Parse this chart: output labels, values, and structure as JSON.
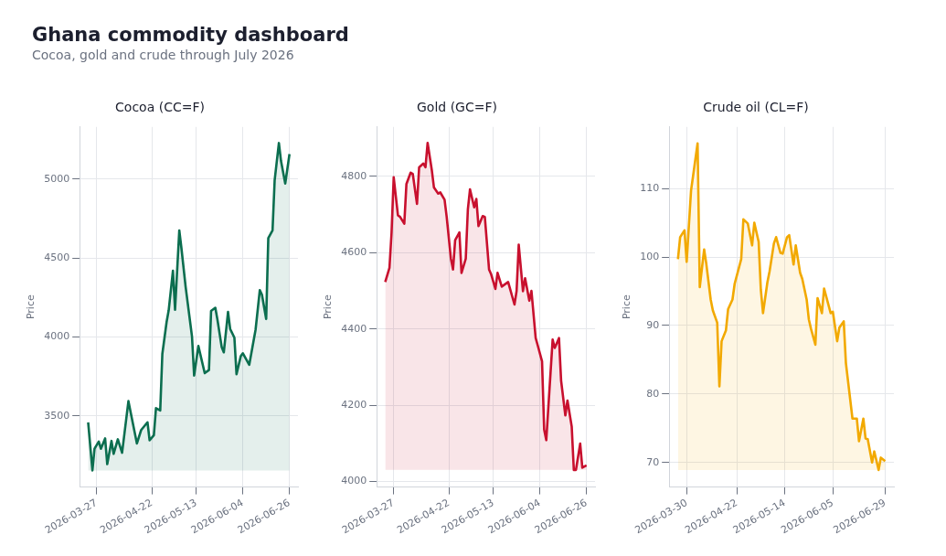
{
  "chart_data": [
    {
      "type": "other",
      "title": "Ghana commodity dashboard",
      "subtitle": "Cocoa, gold and crude through July 2026"
    },
    {
      "type": "area",
      "title": "Cocoa (CC=F)",
      "ylabel": "Price",
      "color": "#0b6e4f",
      "grid": true,
      "xlim": [
        "2026-03-19",
        "2026-06-30"
      ],
      "xticks": [
        {
          "value": "2026-03-27",
          "label": "2026-03-27"
        },
        {
          "value": "2026-04-22",
          "label": "2026-04-22"
        },
        {
          "value": "2026-05-13",
          "label": "2026-05-13"
        },
        {
          "value": "2026-06-04",
          "label": "2026-06-04"
        },
        {
          "value": "2026-06-26",
          "label": "2026-06-26"
        }
      ],
      "ylim": [
        3050,
        5330
      ],
      "yticks": [
        3500,
        4000,
        4500,
        5000
      ],
      "x": [
        "2026-03-23",
        "2026-03-25",
        "2026-03-26",
        "2026-03-28",
        "2026-03-29",
        "2026-03-31",
        "2026-04-01",
        "2026-04-03",
        "2026-04-04",
        "2026-04-06",
        "2026-04-08",
        "2026-04-11",
        "2026-04-15",
        "2026-04-17",
        "2026-04-20",
        "2026-04-21",
        "2026-04-23",
        "2026-04-24",
        "2026-04-26",
        "2026-04-27",
        "2026-04-29",
        "2026-04-30",
        "2026-05-02",
        "2026-05-03",
        "2026-05-05",
        "2026-05-06",
        "2026-05-08",
        "2026-05-11",
        "2026-05-12",
        "2026-05-14",
        "2026-05-17",
        "2026-05-19",
        "2026-05-20",
        "2026-05-22",
        "2026-05-23",
        "2026-05-25",
        "2026-05-26",
        "2026-05-28",
        "2026-05-29",
        "2026-05-31",
        "2026-06-01",
        "2026-06-03",
        "2026-06-04",
        "2026-06-07",
        "2026-06-10",
        "2026-06-12",
        "2026-06-13",
        "2026-06-15",
        "2026-06-16",
        "2026-06-18",
        "2026-06-19",
        "2026-06-21",
        "2026-06-22",
        "2026-06-24",
        "2026-06-26"
      ],
      "values": [
        3460,
        3155,
        3293,
        3338,
        3293,
        3358,
        3195,
        3342,
        3260,
        3352,
        3267,
        3594,
        3326,
        3411,
        3460,
        3346,
        3378,
        3549,
        3535,
        3893,
        4094,
        4169,
        4419,
        4173,
        4675,
        4563,
        4317,
        4002,
        3756,
        3943,
        3771,
        3791,
        4165,
        4185,
        4110,
        3937,
        3903,
        4159,
        4051,
        3996,
        3765,
        3878,
        3897,
        3824,
        4047,
        4297,
        4268,
        4114,
        4626,
        4675,
        4992,
        5228,
        5114,
        4972,
        5158
      ]
    },
    {
      "type": "area",
      "title": "Gold (GC=F)",
      "ylabel": "Price",
      "color": "#c8102e",
      "grid": true,
      "xlim": [
        "2026-03-19",
        "2026-06-30"
      ],
      "xticks": [
        {
          "value": "2026-03-27",
          "label": "2026-03-27"
        },
        {
          "value": "2026-04-22",
          "label": "2026-04-22"
        },
        {
          "value": "2026-05-13",
          "label": "2026-05-13"
        },
        {
          "value": "2026-06-04",
          "label": "2026-06-04"
        },
        {
          "value": "2026-06-26",
          "label": "2026-06-26"
        }
      ],
      "ylim": [
        3985,
        4930
      ],
      "yticks": [
        4000,
        4200,
        4400,
        4600,
        4800
      ],
      "x": [
        "2026-03-23",
        "2026-03-25",
        "2026-03-26",
        "2026-03-27",
        "2026-03-29",
        "2026-03-30",
        "2026-04-01",
        "2026-04-02",
        "2026-04-04",
        "2026-04-05",
        "2026-04-07",
        "2026-04-08",
        "2026-04-10",
        "2026-04-11",
        "2026-04-12",
        "2026-04-14",
        "2026-04-15",
        "2026-04-17",
        "2026-04-18",
        "2026-04-20",
        "2026-04-21",
        "2026-04-23",
        "2026-04-24",
        "2026-04-25",
        "2026-04-27",
        "2026-04-28",
        "2026-04-30",
        "2026-05-01",
        "2026-05-02",
        "2026-05-04",
        "2026-05-05",
        "2026-05-06",
        "2026-05-08",
        "2026-05-09",
        "2026-05-11",
        "2026-05-12",
        "2026-05-14",
        "2026-05-15",
        "2026-05-17",
        "2026-05-20",
        "2026-05-23",
        "2026-05-24",
        "2026-05-25",
        "2026-05-27",
        "2026-05-28",
        "2026-05-30",
        "2026-05-31",
        "2026-06-02",
        "2026-06-03",
        "2026-06-05",
        "2026-06-06",
        "2026-06-07",
        "2026-06-10",
        "2026-06-11",
        "2026-06-13",
        "2026-06-14",
        "2026-06-16",
        "2026-06-17",
        "2026-06-19",
        "2026-06-20",
        "2026-06-21",
        "2026-06-23",
        "2026-06-24",
        "2026-06-26"
      ],
      "values": [
        4523,
        4560,
        4653,
        4798,
        4698,
        4694,
        4676,
        4780,
        4810,
        4807,
        4728,
        4824,
        4834,
        4824,
        4888,
        4816,
        4771,
        4755,
        4758,
        4739,
        4694,
        4584,
        4556,
        4633,
        4653,
        4547,
        4584,
        4714,
        4766,
        4719,
        4741,
        4670,
        4696,
        4694,
        4556,
        4543,
        4505,
        4547,
        4511,
        4523,
        4464,
        4500,
        4621,
        4499,
        4533,
        4474,
        4500,
        4376,
        4356,
        4315,
        4136,
        4108,
        4372,
        4350,
        4376,
        4264,
        4173,
        4212,
        4144,
        4030,
        4030,
        4099,
        4036,
        4042
      ]
    },
    {
      "type": "area",
      "title": "Crude oil (CL=F)",
      "ylabel": "Price",
      "color": "#f2a900",
      "grid": true,
      "xlim": [
        "2026-03-22",
        "2026-07-03"
      ],
      "xticks": [
        {
          "value": "2026-03-30",
          "label": "2026-03-30"
        },
        {
          "value": "2026-04-22",
          "label": "2026-04-22"
        },
        {
          "value": "2026-05-14",
          "label": "2026-05-14"
        },
        {
          "value": "2026-06-05",
          "label": "2026-06-05"
        },
        {
          "value": "2026-06-29",
          "label": "2026-06-29"
        }
      ],
      "ylim": [
        66.4,
        119
      ],
      "yticks": [
        70,
        80,
        90,
        100,
        110
      ],
      "x": [
        "2026-03-26",
        "2026-03-27",
        "2026-03-29",
        "2026-03-30",
        "2026-04-01",
        "2026-04-02",
        "2026-04-04",
        "2026-04-05",
        "2026-04-07",
        "2026-04-08",
        "2026-04-10",
        "2026-04-11",
        "2026-04-13",
        "2026-04-14",
        "2026-04-15",
        "2026-04-17",
        "2026-04-18",
        "2026-04-20",
        "2026-04-21",
        "2026-04-24",
        "2026-04-25",
        "2026-04-27",
        "2026-04-29",
        "2026-04-30",
        "2026-05-02",
        "2026-05-03",
        "2026-05-04",
        "2026-05-06",
        "2026-05-07",
        "2026-05-09",
        "2026-05-10",
        "2026-05-12",
        "2026-05-13",
        "2026-05-15",
        "2026-05-16",
        "2026-05-18",
        "2026-05-19",
        "2026-05-21",
        "2026-05-22",
        "2026-05-24",
        "2026-05-25",
        "2026-05-26",
        "2026-05-28",
        "2026-05-29",
        "2026-05-31",
        "2026-06-01",
        "2026-06-04",
        "2026-06-05",
        "2026-06-07",
        "2026-06-08",
        "2026-06-10",
        "2026-06-11",
        "2026-06-14",
        "2026-06-16",
        "2026-06-17",
        "2026-06-19",
        "2026-06-20",
        "2026-06-21",
        "2026-06-23",
        "2026-06-24",
        "2026-06-26",
        "2026-06-27",
        "2026-06-29"
      ],
      "values": [
        99.7,
        102.9,
        103.9,
        99.3,
        109.7,
        112.0,
        116.6,
        95.6,
        101.1,
        99.0,
        93.8,
        92.2,
        90.4,
        81.1,
        87.7,
        89.3,
        92.4,
        93.8,
        96.1,
        99.7,
        105.5,
        104.9,
        101.7,
        105.0,
        102.2,
        95.2,
        91.8,
        96.3,
        97.9,
        102.0,
        102.9,
        100.6,
        100.5,
        102.9,
        103.2,
        98.9,
        101.7,
        97.7,
        96.8,
        93.8,
        90.9,
        89.5,
        87.2,
        94.0,
        91.8,
        95.4,
        91.8,
        92.0,
        87.7,
        89.7,
        90.6,
        84.5,
        76.4,
        76.4,
        73.1,
        76.4,
        73.5,
        73.4,
        70.0,
        71.6,
        68.9,
        70.7,
        70.2
      ]
    }
  ]
}
